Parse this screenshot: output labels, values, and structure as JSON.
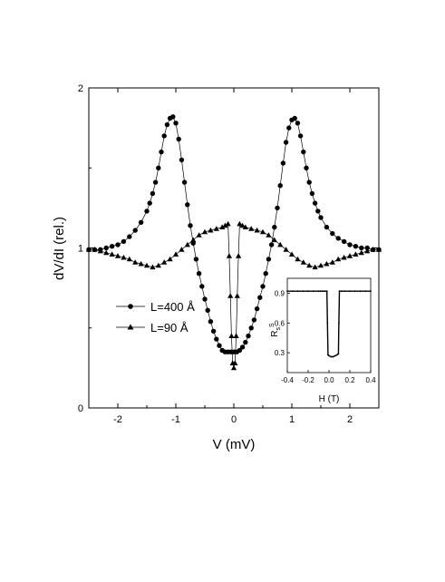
{
  "chart_data": [
    {
      "type": "line",
      "xlabel": "V (mV)",
      "ylabel": "dV/dI (rel.)",
      "xlim": [
        -2.5,
        2.5
      ],
      "ylim": [
        0,
        2
      ],
      "xticks": [
        "-2",
        "-1",
        "0",
        "1",
        "2"
      ],
      "yticks": [
        "0",
        "1",
        "2"
      ],
      "legend_position": "center-left",
      "series": [
        {
          "name": "L=400 Å",
          "marker": "circle",
          "x": [
            -2.5,
            -2.4,
            -2.3,
            -2.2,
            -2.1,
            -2.0,
            -1.9,
            -1.8,
            -1.7,
            -1.6,
            -1.5,
            -1.45,
            -1.4,
            -1.35,
            -1.3,
            -1.25,
            -1.2,
            -1.15,
            -1.1,
            -1.05,
            -1.0,
            -0.95,
            -0.9,
            -0.85,
            -0.8,
            -0.75,
            -0.7,
            -0.65,
            -0.6,
            -0.55,
            -0.5,
            -0.45,
            -0.4,
            -0.35,
            -0.3,
            -0.25,
            -0.2,
            -0.15,
            -0.1,
            -0.05,
            0.0,
            0.05,
            0.1,
            0.15,
            0.2,
            0.25,
            0.3,
            0.35,
            0.4,
            0.45,
            0.5,
            0.55,
            0.6,
            0.65,
            0.7,
            0.75,
            0.8,
            0.85,
            0.9,
            0.95,
            1.0,
            1.05,
            1.1,
            1.15,
            1.2,
            1.25,
            1.3,
            1.35,
            1.4,
            1.45,
            1.5,
            1.6,
            1.7,
            1.8,
            1.9,
            2.0,
            2.1,
            2.2,
            2.3,
            2.4,
            2.5
          ],
          "y": [
            0.99,
            0.99,
            0.99,
            1.0,
            1.01,
            1.02,
            1.04,
            1.07,
            1.11,
            1.16,
            1.23,
            1.28,
            1.34,
            1.41,
            1.5,
            1.6,
            1.7,
            1.77,
            1.81,
            1.82,
            1.78,
            1.68,
            1.55,
            1.41,
            1.27,
            1.14,
            1.03,
            0.93,
            0.84,
            0.76,
            0.68,
            0.61,
            0.54,
            0.48,
            0.43,
            0.39,
            0.36,
            0.35,
            0.35,
            0.35,
            0.35,
            0.35,
            0.36,
            0.38,
            0.41,
            0.45,
            0.5,
            0.55,
            0.62,
            0.69,
            0.76,
            0.84,
            0.93,
            1.02,
            1.13,
            1.25,
            1.39,
            1.53,
            1.66,
            1.75,
            1.8,
            1.81,
            1.78,
            1.7,
            1.6,
            1.5,
            1.41,
            1.34,
            1.28,
            1.23,
            1.19,
            1.13,
            1.09,
            1.06,
            1.04,
            1.02,
            1.01,
            1.0,
            1.0,
            0.99,
            0.99
          ]
        },
        {
          "name": "L=90 Å",
          "marker": "triangle",
          "x": [
            -2.5,
            -2.4,
            -2.3,
            -2.2,
            -2.1,
            -2.0,
            -1.9,
            -1.8,
            -1.7,
            -1.6,
            -1.5,
            -1.4,
            -1.3,
            -1.2,
            -1.1,
            -1.0,
            -0.9,
            -0.8,
            -0.7,
            -0.6,
            -0.5,
            -0.4,
            -0.3,
            -0.2,
            -0.15,
            -0.1,
            -0.08,
            -0.06,
            -0.04,
            -0.02,
            0.0,
            0.02,
            0.04,
            0.06,
            0.08,
            0.1,
            0.15,
            0.2,
            0.3,
            0.4,
            0.5,
            0.6,
            0.7,
            0.8,
            0.9,
            1.0,
            1.1,
            1.2,
            1.3,
            1.4,
            1.5,
            1.6,
            1.7,
            1.8,
            1.9,
            2.0,
            2.1,
            2.2,
            2.3,
            2.4,
            2.5
          ],
          "y": [
            0.99,
            0.99,
            0.98,
            0.97,
            0.96,
            0.95,
            0.94,
            0.93,
            0.91,
            0.9,
            0.89,
            0.88,
            0.89,
            0.91,
            0.93,
            0.96,
            0.99,
            1.02,
            1.05,
            1.08,
            1.1,
            1.11,
            1.12,
            1.13,
            1.14,
            1.15,
            0.95,
            0.7,
            0.45,
            0.28,
            0.25,
            0.28,
            0.45,
            0.7,
            0.95,
            1.15,
            1.14,
            1.13,
            1.12,
            1.11,
            1.1,
            1.08,
            1.05,
            1.02,
            0.99,
            0.96,
            0.93,
            0.91,
            0.89,
            0.88,
            0.89,
            0.9,
            0.91,
            0.93,
            0.94,
            0.95,
            0.96,
            0.97,
            0.98,
            0.99,
            0.99
          ]
        }
      ]
    },
    {
      "type": "line",
      "xlabel": "H (T)",
      "ylabel": "R_s^S",
      "xlim": [
        -0.4,
        0.4
      ],
      "ylim": [
        0.1,
        1.05
      ],
      "xticks": [
        "-0.4",
        "-0.2",
        "0.0",
        "0.2",
        "0.4"
      ],
      "yticks": [
        "0.3",
        "0.6",
        "0.9"
      ],
      "series": [
        {
          "x": [
            -0.4,
            -0.35,
            -0.3,
            -0.25,
            -0.2,
            -0.15,
            -0.1,
            -0.08,
            -0.06,
            -0.04,
            -0.02,
            -0.015,
            -0.01,
            0.0,
            0.02,
            0.04,
            0.06,
            0.08,
            0.09,
            0.095,
            0.1,
            0.12,
            0.15,
            0.2,
            0.25,
            0.3,
            0.35,
            0.4
          ],
          "y": [
            0.92,
            0.92,
            0.92,
            0.92,
            0.92,
            0.92,
            0.92,
            0.92,
            0.92,
            0.92,
            0.92,
            0.6,
            0.28,
            0.27,
            0.26,
            0.26,
            0.27,
            0.28,
            0.29,
            0.6,
            0.92,
            0.92,
            0.92,
            0.92,
            0.92,
            0.92,
            0.92,
            0.92
          ]
        }
      ]
    }
  ]
}
